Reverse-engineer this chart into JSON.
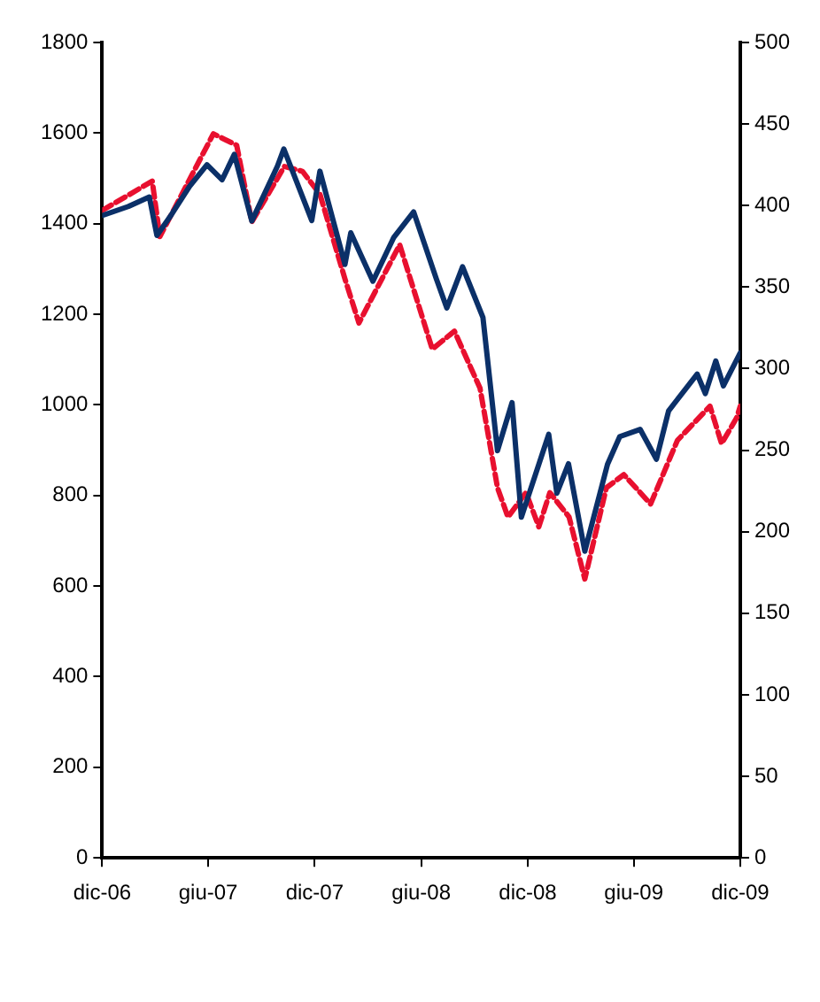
{
  "chart_data": {
    "type": "line",
    "grid": false,
    "legend": false,
    "marker": "none",
    "xlim": [
      "2006-12-01",
      "2009-12-01"
    ],
    "xticks": [
      {
        "value": "2006-12-01",
        "label": "dic-06"
      },
      {
        "value": "2007-06-01",
        "label": "giu-07"
      },
      {
        "value": "2007-12-01",
        "label": "dic-07"
      },
      {
        "value": "2008-06-01",
        "label": "giu-08"
      },
      {
        "value": "2008-12-01",
        "label": "dic-08"
      },
      {
        "value": "2009-06-01",
        "label": "giu-09"
      },
      {
        "value": "2009-12-01",
        "label": "dic-09"
      }
    ],
    "ylim": [
      0,
      1800
    ],
    "yticks": [
      0,
      200,
      400,
      600,
      800,
      1000,
      1200,
      1400,
      1600,
      1800
    ],
    "y2lim": [
      0,
      500
    ],
    "y2ticks": [
      0,
      50,
      100,
      150,
      200,
      250,
      300,
      350,
      400,
      450,
      500
    ],
    "series": [
      {
        "color": "#0b3068",
        "line_style": "solid",
        "x": [
          "2006-12-01",
          "2007-01-15",
          "2007-02-20",
          "2007-03-05",
          "2007-03-30",
          "2007-04-30",
          "2007-05-30",
          "2007-06-25",
          "2007-07-16",
          "2007-08-15",
          "2007-09-28",
          "2007-10-09",
          "2007-11-26",
          "2007-12-10",
          "2008-01-22",
          "2008-02-01",
          "2008-03-10",
          "2008-04-15",
          "2008-05-19",
          "2008-06-27",
          "2008-07-15",
          "2008-08-11",
          "2008-09-15",
          "2008-10-10",
          "2008-11-04",
          "2008-11-20",
          "2009-01-06",
          "2009-01-20",
          "2009-02-09",
          "2009-03-09",
          "2009-04-17",
          "2009-05-08",
          "2009-06-12",
          "2009-07-10",
          "2009-07-31",
          "2009-09-18",
          "2009-10-02",
          "2009-10-20",
          "2009-11-02",
          "2009-12-01"
        ],
        "values": [
          1418,
          1438,
          1459,
          1374,
          1420,
          1482,
          1530,
          1497,
          1553,
          1406,
          1527,
          1565,
          1407,
          1516,
          1310,
          1380,
          1273,
          1370,
          1426,
          1278,
          1214,
          1305,
          1193,
          899,
          1005,
          752,
          935,
          805,
          870,
          677,
          869,
          930,
          946,
          880,
          987,
          1068,
          1025,
          1097,
          1042,
          1115
        ]
      },
      {
        "color": "#e8102f",
        "line_style": "dashed",
        "axis": "y2",
        "x": [
          "2006-12-01",
          "2007-02-25",
          "2007-03-10",
          "2007-06-10",
          "2007-07-20",
          "2007-08-15",
          "2007-10-10",
          "2007-11-10",
          "2007-12-10",
          "2008-01-22",
          "2008-02-15",
          "2008-04-25",
          "2008-06-20",
          "2008-07-28",
          "2008-09-10",
          "2008-10-10",
          "2008-10-28",
          "2008-11-28",
          "2008-12-20",
          "2009-01-08",
          "2009-02-10",
          "2009-03-09",
          "2009-04-15",
          "2009-05-15",
          "2009-06-30",
          "2009-08-15",
          "2009-10-10",
          "2009-10-30",
          "2009-11-25",
          "2009-12-01"
        ],
        "values": [
          397,
          415,
          381,
          444,
          437,
          390,
          424,
          421,
          407,
          355,
          328,
          376,
          312,
          323,
          288,
          227,
          209,
          224,
          203,
          224,
          209,
          171,
          227,
          235,
          217,
          256,
          277,
          254,
          270,
          277
        ]
      }
    ]
  }
}
